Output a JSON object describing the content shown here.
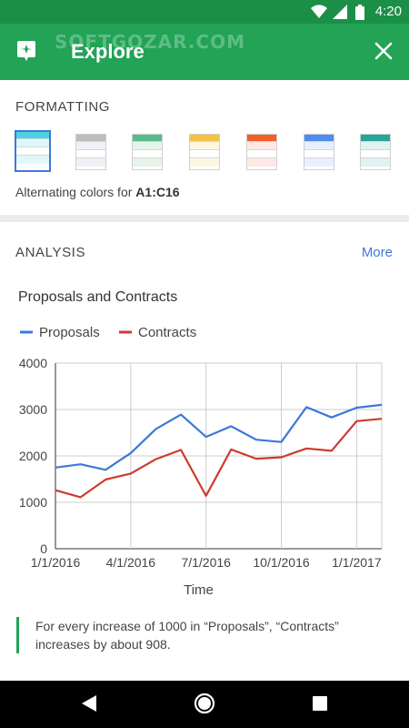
{
  "status_bar": {
    "time": "4:20",
    "icons": [
      "wifi-icon",
      "signal-icon",
      "battery-icon"
    ]
  },
  "app_bar": {
    "title": "Explore",
    "watermark": "SOFTGOZAR.COM",
    "icons": [
      "explore-app-icon",
      "close-icon"
    ]
  },
  "formatting": {
    "label": "FORMATTING",
    "swatches": [
      {
        "name": "cyan",
        "color": "#4dd0e1",
        "light": "#e0f7fa",
        "selected": true
      },
      {
        "name": "gray",
        "color": "#bdbdbd",
        "light": "#f3eff7",
        "selected": false
      },
      {
        "name": "green",
        "color": "#57bb8a",
        "light": "#e6f4ea",
        "selected": false
      },
      {
        "name": "yellow",
        "color": "#f6c143",
        "light": "#fef7e0",
        "selected": false
      },
      {
        "name": "orange",
        "color": "#f05f2a",
        "light": "#fde8e3",
        "selected": false
      },
      {
        "name": "blue",
        "color": "#4e8cf1",
        "light": "#e8effc",
        "selected": false
      },
      {
        "name": "teal",
        "color": "#26a69a",
        "light": "#e0f2f1",
        "selected": false
      }
    ],
    "alt_text_prefix": "Alternating colors for ",
    "alt_text_range": "A1:C16"
  },
  "analysis": {
    "label": "ANALYSIS",
    "more_label": "More"
  },
  "chart_data": {
    "type": "line",
    "title": "Proposals and Contracts",
    "xlabel": "Time",
    "ylabel": "",
    "x": [
      "1/1/2016",
      "2/1/2016",
      "3/1/2016",
      "4/1/2016",
      "5/1/2016",
      "6/1/2016",
      "7/1/2016",
      "8/1/2016",
      "9/1/2016",
      "10/1/2016",
      "11/1/2016",
      "12/1/2016",
      "1/1/2017",
      "2/1/2017"
    ],
    "x_ticks": [
      "1/1/2016",
      "4/1/2016",
      "7/1/2016",
      "10/1/2016",
      "1/1/2017"
    ],
    "y_ticks": [
      "0",
      "1000",
      "2000",
      "3000",
      "4000"
    ],
    "ylim": [
      0,
      4000
    ],
    "grid": true,
    "legend": "top-left",
    "series": [
      {
        "name": "Proposals",
        "color": "#3c78d8",
        "values": [
          1750,
          1820,
          1700,
          2060,
          2580,
          2890,
          2410,
          2640,
          2350,
          2300,
          3050,
          2830,
          3040,
          3100
        ]
      },
      {
        "name": "Contracts",
        "color": "#cc3b2e",
        "values": [
          1260,
          1110,
          1490,
          1620,
          1930,
          2130,
          1140,
          2140,
          1940,
          1970,
          2160,
          2110,
          2750,
          2800
        ]
      }
    ]
  },
  "insight": {
    "text": "For every increase of 1000 in “Proposals”, “Contracts” increases by about 908."
  },
  "nav_bar": {
    "icons": [
      "back-icon",
      "home-icon",
      "recents-icon"
    ]
  }
}
